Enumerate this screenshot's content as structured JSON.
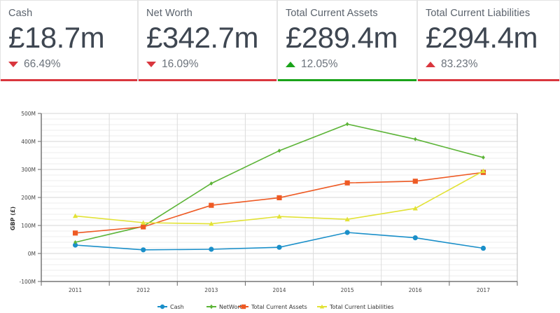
{
  "kpis": [
    {
      "label": "Cash",
      "value": "£18.7m",
      "change": "66.49%",
      "direction": "down",
      "color": "#d9363e"
    },
    {
      "label": "Net Worth",
      "value": "£342.7m",
      "change": "16.09%",
      "direction": "down",
      "color": "#d9363e"
    },
    {
      "label": "Total Current Assets",
      "value": "£289.4m",
      "change": "12.05%",
      "direction": "up",
      "color": "#1aa31a"
    },
    {
      "label": "Total Current Liabilities",
      "value": "£294.4m",
      "change": "83.23%",
      "direction": "up",
      "color": "#d9363e"
    }
  ],
  "chart_data": {
    "type": "line",
    "title": "",
    "xlabel": "",
    "ylabel": "GBP (£)",
    "x": [
      "2011",
      "2012",
      "2013",
      "2014",
      "2015",
      "2016",
      "2017"
    ],
    "ylim": [
      -100,
      500
    ],
    "yticks": [
      -100,
      0,
      100,
      200,
      300,
      400,
      500
    ],
    "ytick_labels": [
      "-100M",
      "0M",
      "100M",
      "200M",
      "300M",
      "400M",
      "500M"
    ],
    "grid": true,
    "legend": "bottom",
    "series": [
      {
        "name": "Cash",
        "color": "#1a8fc9",
        "marker": "circle",
        "values": [
          30,
          13,
          15,
          22,
          75,
          56,
          18.7
        ]
      },
      {
        "name": "NetWorth",
        "color": "#5cb437",
        "marker": "diamond",
        "values": [
          40,
          97,
          250,
          367,
          462,
          408,
          342.7
        ]
      },
      {
        "name": "Total Current Assets",
        "color": "#ee5a24",
        "marker": "square",
        "values": [
          73,
          95,
          172,
          199,
          252,
          258,
          289.4
        ]
      },
      {
        "name": "Total Current Liabilities",
        "color": "#e2e236",
        "marker": "triangle",
        "values": [
          134,
          110,
          106,
          132,
          122,
          161,
          294.4
        ]
      }
    ]
  }
}
